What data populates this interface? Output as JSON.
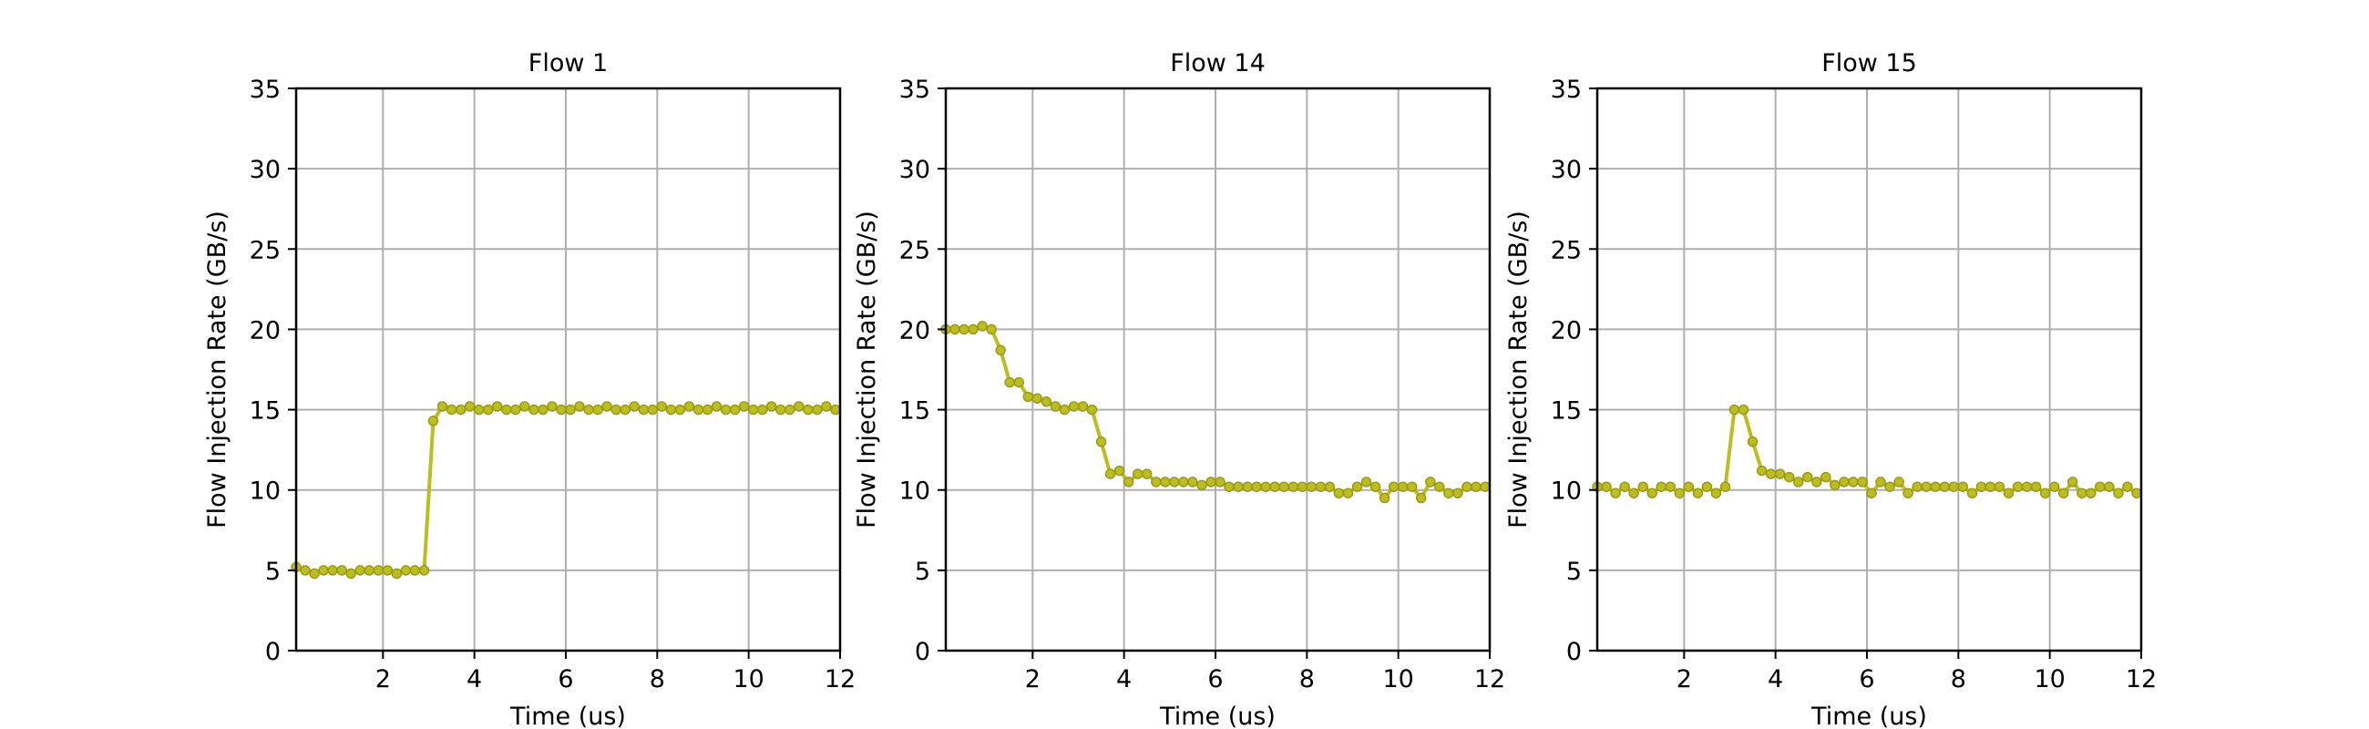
{
  "chart_data": [
    {
      "type": "line",
      "title": "Flow 1",
      "xlabel": "Time (us)",
      "ylabel": "Flow Injection Rate (GB/s)",
      "xlim": [
        0.1,
        12
      ],
      "ylim": [
        0,
        35
      ],
      "xticks": [
        2,
        4,
        6,
        8,
        10,
        12
      ],
      "yticks": [
        0,
        5,
        10,
        15,
        20,
        25,
        30,
        35
      ],
      "grid": true,
      "series": [
        {
          "color": "#bcbd22",
          "x": [
            0.1,
            0.3,
            0.5,
            0.7,
            0.9,
            1.1,
            1.3,
            1.5,
            1.7,
            1.9,
            2.1,
            2.3,
            2.5,
            2.7,
            2.9,
            3.1,
            3.3,
            3.5,
            3.7,
            3.9,
            4.1,
            4.3,
            4.5,
            4.7,
            4.9,
            5.1,
            5.3,
            5.5,
            5.7,
            5.9,
            6.1,
            6.3,
            6.5,
            6.7,
            6.9,
            7.1,
            7.3,
            7.5,
            7.7,
            7.9,
            8.1,
            8.3,
            8.5,
            8.7,
            8.9,
            9.1,
            9.3,
            9.5,
            9.7,
            9.9,
            10.1,
            10.3,
            10.5,
            10.7,
            10.9,
            11.1,
            11.3,
            11.5,
            11.7,
            11.9
          ],
          "y": [
            5.2,
            5.0,
            4.8,
            5.0,
            5.0,
            5.0,
            4.8,
            5.0,
            5.0,
            5.0,
            5.0,
            4.8,
            5.0,
            5.0,
            5.0,
            14.3,
            15.2,
            15.0,
            15.0,
            15.2,
            15.0,
            15.0,
            15.2,
            15.0,
            15.0,
            15.2,
            15.0,
            15.0,
            15.2,
            15.0,
            15.0,
            15.2,
            15.0,
            15.0,
            15.2,
            15.0,
            15.0,
            15.2,
            15.0,
            15.0,
            15.2,
            15.0,
            15.0,
            15.2,
            15.0,
            15.0,
            15.2,
            15.0,
            15.0,
            15.2,
            15.0,
            15.0,
            15.2,
            15.0,
            15.0,
            15.2,
            15.0,
            15.0,
            15.2,
            15.0
          ]
        }
      ]
    },
    {
      "type": "line",
      "title": "Flow 14",
      "xlabel": "Time (us)",
      "ylabel": "Flow Injection Rate (GB/s)",
      "xlim": [
        0.1,
        12
      ],
      "ylim": [
        0,
        35
      ],
      "xticks": [
        2,
        4,
        6,
        8,
        10,
        12
      ],
      "yticks": [
        0,
        5,
        10,
        15,
        20,
        25,
        30,
        35
      ],
      "grid": true,
      "series": [
        {
          "color": "#bcbd22",
          "x": [
            0.1,
            0.3,
            0.5,
            0.7,
            0.9,
            1.1,
            1.3,
            1.5,
            1.7,
            1.9,
            2.1,
            2.3,
            2.5,
            2.7,
            2.9,
            3.1,
            3.3,
            3.5,
            3.7,
            3.9,
            4.1,
            4.3,
            4.5,
            4.7,
            4.9,
            5.1,
            5.3,
            5.5,
            5.7,
            5.9,
            6.1,
            6.3,
            6.5,
            6.7,
            6.9,
            7.1,
            7.3,
            7.5,
            7.7,
            7.9,
            8.1,
            8.3,
            8.5,
            8.7,
            8.9,
            9.1,
            9.3,
            9.5,
            9.7,
            9.9,
            10.1,
            10.3,
            10.5,
            10.7,
            10.9,
            11.1,
            11.3,
            11.5,
            11.7,
            11.9
          ],
          "y": [
            20.0,
            20.0,
            20.0,
            20.0,
            20.2,
            20.0,
            18.7,
            16.7,
            16.7,
            15.8,
            15.7,
            15.5,
            15.2,
            15.0,
            15.2,
            15.2,
            15.0,
            13.0,
            11.0,
            11.2,
            10.5,
            11.0,
            11.0,
            10.5,
            10.5,
            10.5,
            10.5,
            10.5,
            10.3,
            10.5,
            10.5,
            10.2,
            10.2,
            10.2,
            10.2,
            10.2,
            10.2,
            10.2,
            10.2,
            10.2,
            10.2,
            10.2,
            10.2,
            9.8,
            9.8,
            10.2,
            10.5,
            10.2,
            9.5,
            10.2,
            10.2,
            10.2,
            9.5,
            10.5,
            10.2,
            9.8,
            9.8,
            10.2,
            10.2,
            10.2
          ]
        }
      ]
    },
    {
      "type": "line",
      "title": "Flow 15",
      "xlabel": "Time (us)",
      "ylabel": "Flow Injection Rate (GB/s)",
      "xlim": [
        0.1,
        12
      ],
      "ylim": [
        0,
        35
      ],
      "xticks": [
        2,
        4,
        6,
        8,
        10,
        12
      ],
      "yticks": [
        0,
        5,
        10,
        15,
        20,
        25,
        30,
        35
      ],
      "grid": true,
      "series": [
        {
          "color": "#bcbd22",
          "x": [
            0.1,
            0.3,
            0.5,
            0.7,
            0.9,
            1.1,
            1.3,
            1.5,
            1.7,
            1.9,
            2.1,
            2.3,
            2.5,
            2.7,
            2.9,
            3.1,
            3.3,
            3.5,
            3.7,
            3.9,
            4.1,
            4.3,
            4.5,
            4.7,
            4.9,
            5.1,
            5.3,
            5.5,
            5.7,
            5.9,
            6.1,
            6.3,
            6.5,
            6.7,
            6.9,
            7.1,
            7.3,
            7.5,
            7.7,
            7.9,
            8.1,
            8.3,
            8.5,
            8.7,
            8.9,
            9.1,
            9.3,
            9.5,
            9.7,
            9.9,
            10.1,
            10.3,
            10.5,
            10.7,
            10.9,
            11.1,
            11.3,
            11.5,
            11.7,
            11.9
          ],
          "y": [
            10.2,
            10.2,
            9.8,
            10.2,
            9.8,
            10.2,
            9.8,
            10.2,
            10.2,
            9.8,
            10.2,
            9.8,
            10.2,
            9.8,
            10.2,
            15.0,
            15.0,
            13.0,
            11.2,
            11.0,
            11.0,
            10.8,
            10.5,
            10.8,
            10.5,
            10.8,
            10.3,
            10.5,
            10.5,
            10.5,
            9.8,
            10.5,
            10.2,
            10.5,
            9.8,
            10.2,
            10.2,
            10.2,
            10.2,
            10.2,
            10.2,
            9.8,
            10.2,
            10.2,
            10.2,
            9.8,
            10.2,
            10.2,
            10.2,
            9.8,
            10.2,
            9.8,
            10.5,
            9.8,
            9.8,
            10.2,
            10.2,
            9.8,
            10.2,
            9.8
          ]
        }
      ]
    }
  ]
}
